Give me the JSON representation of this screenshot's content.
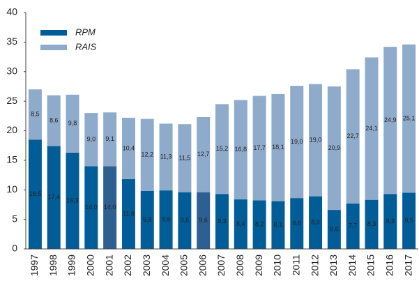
{
  "chart_data": {
    "type": "stacked_bar",
    "categories": [
      "1997",
      "1998",
      "1999",
      "2000",
      "2001",
      "2002",
      "2003",
      "2004",
      "2005",
      "2006",
      "2007",
      "2008",
      "2009",
      "2010",
      "2011",
      "2012",
      "2013",
      "2014",
      "2015",
      "2016",
      "2017"
    ],
    "series": [
      {
        "name": "RPM",
        "color": "#005d98",
        "point_colors": [
          "#005d98",
          "#005d98",
          "#005d98",
          "#005d98",
          "#2d5f93",
          "#005d98",
          "#005d98",
          "#005d98",
          "#005d98",
          "#2d5f93",
          "#005d98",
          "#005d98",
          "#005d98",
          "#005d98",
          "#005d98",
          "#005d98",
          "#005d98",
          "#005d98",
          "#005d98",
          "#005d98",
          "#005d98"
        ],
        "values": [
          18.5,
          17.4,
          16.3,
          14.0,
          14.0,
          11.8,
          9.8,
          9.9,
          9.6,
          9.6,
          9.3,
          8.4,
          8.2,
          8.1,
          8.6,
          8.9,
          6.6,
          7.7,
          8.3,
          9.3,
          9.5
        ],
        "value_labels": [
          "18,5",
          "17,4",
          "16,3",
          "14,0",
          "14,0",
          "11,8",
          "9,8",
          "9,9",
          "9,6",
          "9,6",
          "9,3",
          "8,4",
          "8,2",
          "8,1",
          "8,6",
          "8,9",
          "6,6",
          "7,7",
          "8,3",
          "9,3",
          "9,5"
        ]
      },
      {
        "name": "RAIS",
        "color": "#8eabcc",
        "values": [
          8.5,
          8.6,
          9.8,
          9.0,
          9.1,
          10.4,
          12.2,
          11.3,
          11.5,
          12.7,
          15.2,
          16.8,
          17.7,
          18.1,
          19.0,
          19.0,
          20.9,
          22.7,
          24.1,
          24.9,
          25.1
        ],
        "value_labels": [
          "8,5",
          "8,6",
          "9,8",
          "9,0",
          "9,1",
          "10,4",
          "12,2",
          "11,3",
          "11,5",
          "12,7",
          "15,2",
          "16,8",
          "17,7",
          "18,1",
          "19,0",
          "19,0",
          "20,9",
          "22,7",
          "24,1",
          "24,9",
          "25,1"
        ]
      }
    ],
    "ylim": [
      0,
      40
    ],
    "yticks": [
      0,
      5,
      10,
      15,
      20,
      25,
      30,
      35,
      40
    ],
    "legend": "upper-left"
  }
}
